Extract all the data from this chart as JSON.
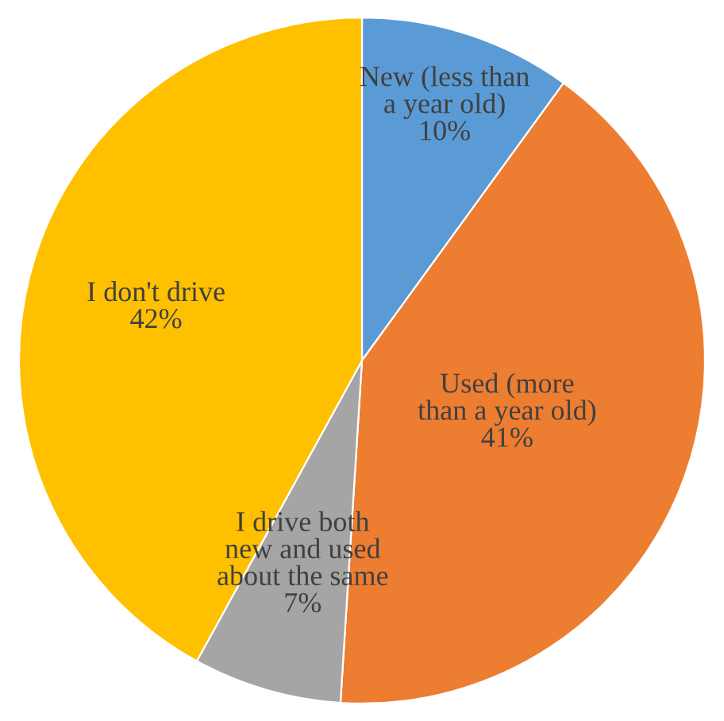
{
  "chart_data": {
    "type": "pie",
    "categories": [
      "New (less than\na year old)",
      "Used (more\nthan a year old)",
      "I drive both\nnew and used\nabout the same",
      "I don't drive"
    ],
    "values": [
      10,
      41,
      7,
      42
    ],
    "value_labels": [
      "10%",
      "41%",
      "7%",
      "42%"
    ],
    "colors": [
      "#5b9bd5",
      "#ed7d31",
      "#a5a5a5",
      "#ffc000"
    ],
    "legend": false
  }
}
